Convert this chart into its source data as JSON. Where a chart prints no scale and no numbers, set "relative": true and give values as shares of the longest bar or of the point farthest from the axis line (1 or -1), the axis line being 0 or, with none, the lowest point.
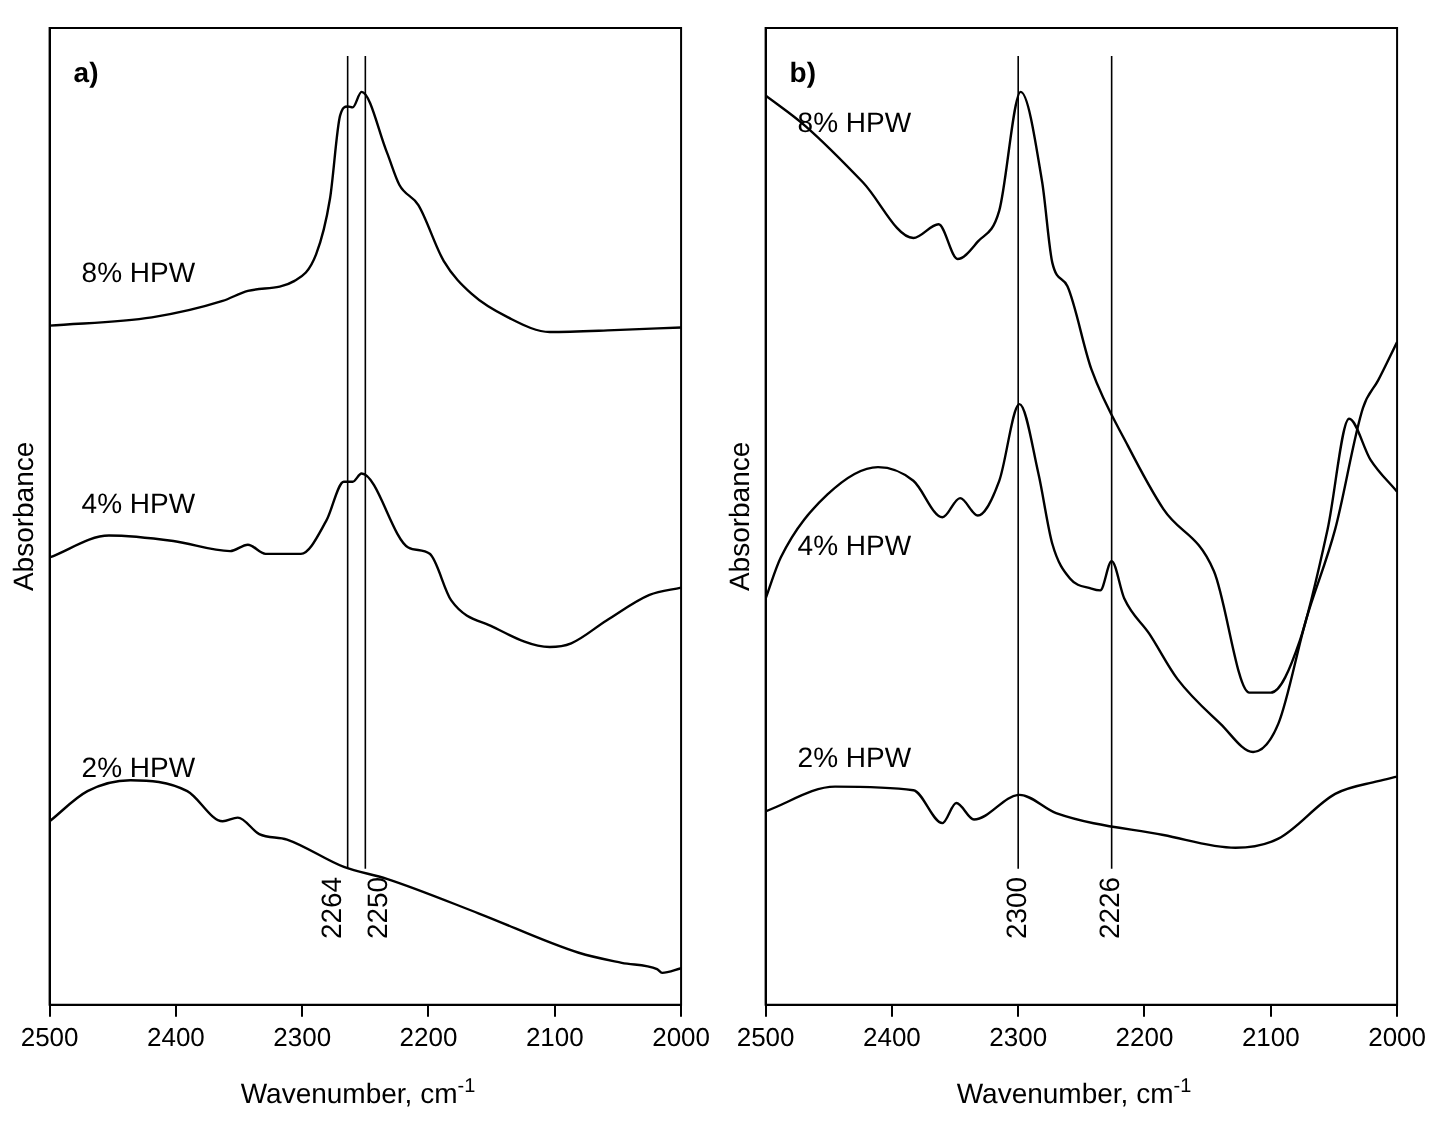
{
  "chart_data": [
    {
      "type": "line",
      "xlabel": "Wavenumber, cm$^{-1}$",
      "ylabel": "Absorbance",
      "relative": true,
      "xlim": [
        2500,
        2000
      ],
      "xticks": [
        2500,
        2400,
        2300,
        2200,
        2100,
        2000
      ],
      "tick_labels": "x",
      "grid": false,
      "legend": false,
      "marker": "none",
      "line_style": "solid",
      "annotations": [
        "a)"
      ],
      "ref_lines": [
        {
          "axis": "x",
          "value": 2264,
          "label": "2264"
        },
        {
          "axis": "x",
          "value": 2250,
          "label": "2250"
        }
      ],
      "series": [
        {
          "name": "8% HPW",
          "color": "#000000",
          "x": [
            2500,
            2419,
            2363,
            2343,
            2306,
            2289,
            2278,
            2270,
            2264,
            2260,
            2253,
            2233,
            2223,
            2208,
            2188,
            2166,
            2137,
            2104,
            2053,
            2000
          ],
          "values": [
            0.744,
            0.753,
            0.771,
            0.782,
            0.793,
            0.822,
            0.883,
            0.974,
            0.984,
            0.983,
            1.0,
            0.934,
            0.898,
            0.876,
            0.815,
            0.779,
            0.753,
            0.737,
            0.739,
            0.742
          ]
        },
        {
          "name": "4% HPW",
          "color": "#000000",
          "x": [
            2500,
            2453,
            2402,
            2357,
            2343,
            2329,
            2301,
            2281,
            2267,
            2260,
            2253,
            2216,
            2199,
            2182,
            2149,
            2104,
            2087,
            2059,
            2025,
            2000
          ],
          "values": [
            0.49,
            0.514,
            0.508,
            0.497,
            0.504,
            0.494,
            0.494,
            0.53,
            0.573,
            0.573,
            0.582,
            0.501,
            0.494,
            0.443,
            0.414,
            0.392,
            0.396,
            0.421,
            0.449,
            0.457
          ]
        },
        {
          "name": "2% HPW",
          "color": "#000000",
          "x": [
            2500,
            2470,
            2436,
            2391,
            2363,
            2351,
            2334,
            2312,
            2267,
            2233,
            2160,
            2081,
            2047,
            2019,
            2015,
            2000
          ],
          "values": [
            0.201,
            0.234,
            0.246,
            0.234,
            0.201,
            0.205,
            0.187,
            0.181,
            0.151,
            0.138,
            0.1,
            0.057,
            0.046,
            0.039,
            0.035,
            0.04
          ]
        }
      ]
    },
    {
      "type": "line",
      "xlabel": "Wavenumber, cm$^{-1}$",
      "ylabel": "Absorbance",
      "relative": true,
      "xlim": [
        2500,
        2000
      ],
      "xticks": [
        2500,
        2400,
        2300,
        2200,
        2100,
        2000
      ],
      "tick_labels": "x",
      "grid": false,
      "legend": false,
      "marker": "none",
      "line_style": "solid",
      "annotations": [
        "b)"
      ],
      "ref_lines": [
        {
          "axis": "x",
          "value": 2300,
          "label": "2300"
        },
        {
          "axis": "x",
          "value": 2226,
          "label": "2226"
        }
      ],
      "series": [
        {
          "name": "8% HPW",
          "color": "#000000",
          "x": [
            2500,
            2468,
            2423,
            2383,
            2363,
            2348,
            2332,
            2315,
            2298,
            2281,
            2273,
            2261,
            2242,
            2213,
            2185,
            2145,
            2117,
            2100,
            2077,
            2055,
            2038,
            2021,
            2000
          ],
          "values": [
            0.996,
            0.962,
            0.901,
            0.84,
            0.855,
            0.817,
            0.836,
            0.87,
            1.0,
            0.901,
            0.813,
            0.787,
            0.696,
            0.612,
            0.543,
            0.475,
            0.342,
            0.342,
            0.399,
            0.521,
            0.642,
            0.597,
            0.562
          ]
        },
        {
          "name": "4% HPW",
          "color": "#000000",
          "x": [
            2500,
            2488,
            2451,
            2411,
            2383,
            2360,
            2346,
            2332,
            2315,
            2299,
            2284,
            2273,
            2259,
            2242,
            2235,
            2226,
            2216,
            2196,
            2174,
            2140,
            2114,
            2094,
            2072,
            2049,
            2027,
            2015,
            2000
          ],
          "values": [
            0.445,
            0.49,
            0.559,
            0.589,
            0.574,
            0.534,
            0.555,
            0.536,
            0.574,
            0.658,
            0.582,
            0.505,
            0.467,
            0.456,
            0.454,
            0.486,
            0.445,
            0.406,
            0.357,
            0.308,
            0.277,
            0.308,
            0.422,
            0.521,
            0.654,
            0.684,
            0.726
          ]
        },
        {
          "name": "2% HPW",
          "color": "#000000",
          "x": [
            2500,
            2445,
            2383,
            2360,
            2349,
            2335,
            2299,
            2270,
            2185,
            2128,
            2094,
            2049,
            2015,
            2000
          ],
          "values": [
            0.212,
            0.239,
            0.235,
            0.199,
            0.221,
            0.203,
            0.23,
            0.21,
            0.186,
            0.172,
            0.182,
            0.231,
            0.245,
            0.25
          ]
        }
      ]
    }
  ]
}
